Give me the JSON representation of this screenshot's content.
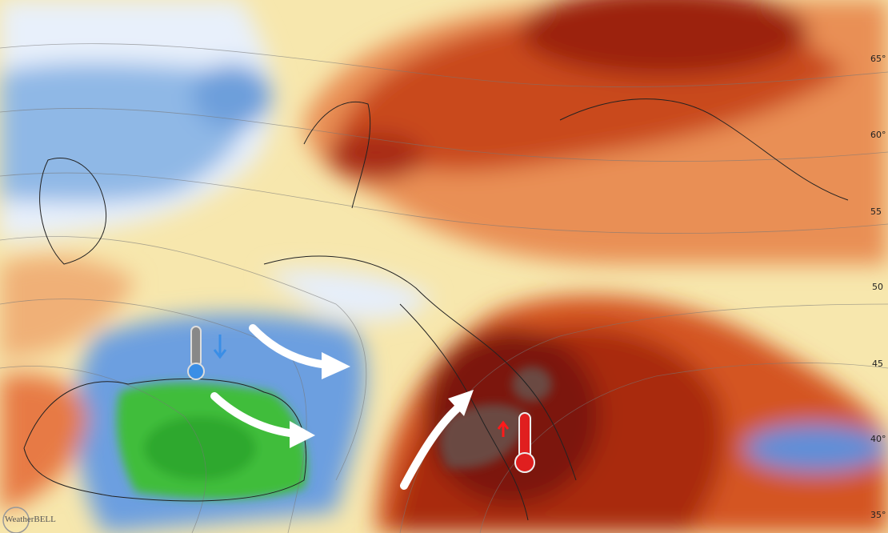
{
  "latitude_labels": [
    "65°",
    "60°",
    "55",
    "50",
    "45",
    "40°",
    "35°"
  ],
  "logo": "WeatherBELL"
}
